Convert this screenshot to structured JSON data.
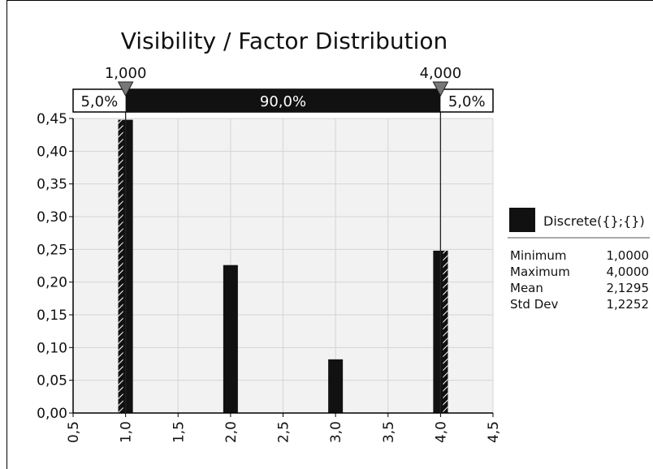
{
  "chart_data": {
    "type": "bar",
    "title": "Visibility / Factor Distribution",
    "x": [
      1.0,
      2.0,
      3.0,
      4.0
    ],
    "values": [
      0.448,
      0.226,
      0.082,
      0.248
    ],
    "xlim": [
      0.5,
      4.5
    ],
    "ylim": [
      0,
      0.45
    ],
    "x_ticks": [
      "0,5",
      "1,0",
      "1,5",
      "2,0",
      "2,5",
      "3,0",
      "3,5",
      "4,0",
      "4,5"
    ],
    "y_ticks": [
      "0,00",
      "0,05",
      "0,10",
      "0,15",
      "0,20",
      "0,25",
      "0,30",
      "0,35",
      "0,40",
      "0,45"
    ],
    "grid": true,
    "markers": {
      "left": {
        "value": 1.0,
        "label": "1,000"
      },
      "right": {
        "value": 4.0,
        "label": "4,000"
      }
    },
    "band": {
      "left_pct": "5,0%",
      "middle_pct": "90,0%",
      "right_pct": "5,0%"
    },
    "legend": {
      "placement": "right",
      "series_name": "Discrete({};{})",
      "stats": [
        {
          "label": "Minimum",
          "value": "1,0000"
        },
        {
          "label": "Maximum",
          "value": "4,0000"
        },
        {
          "label": "Mean",
          "value": "2,1295"
        },
        {
          "label": "Std Dev",
          "value": "1,2252"
        }
      ]
    },
    "colors": {
      "bar": "#111111",
      "plot_bg": "#f2f2f2",
      "grid": "#d4d4d4",
      "band": "#111111"
    }
  }
}
